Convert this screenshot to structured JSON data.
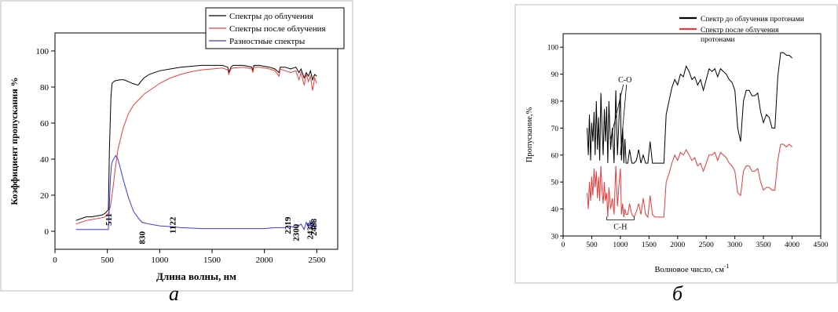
{
  "captions": {
    "a": "а",
    "b": "б"
  },
  "chart_data": [
    {
      "id": "a",
      "type": "line",
      "xlabel": "Длина волны, нм",
      "ylabel": "Коэффициент пропускания %",
      "xlim": [
        0,
        2700
      ],
      "ylim": [
        -10,
        110
      ],
      "xticks": [
        0,
        500,
        1000,
        1500,
        2000,
        2500
      ],
      "yticks": [
        0,
        20,
        40,
        60,
        80,
        100
      ],
      "legend_position": "top-right",
      "series": [
        {
          "name": "Спектры до облучения",
          "color": "#000000",
          "x": [
            200,
            250,
            300,
            350,
            400,
            450,
            480,
            510,
            520,
            535,
            545,
            560,
            580,
            620,
            660,
            700,
            740,
            770,
            790,
            800,
            820,
            850,
            900,
            1000,
            1100,
            1200,
            1300,
            1400,
            1500,
            1600,
            1650,
            1660,
            1680,
            1700,
            1800,
            1880,
            1890,
            1900,
            1950,
            2000,
            2050,
            2100,
            2140,
            2150,
            2200,
            2250,
            2300,
            2330,
            2350,
            2380,
            2400,
            2420,
            2440,
            2460,
            2480,
            2500
          ],
          "y": [
            6,
            7,
            8,
            8,
            8.5,
            9,
            10,
            12,
            45,
            75,
            82,
            83,
            83.5,
            84,
            84,
            83,
            82,
            81.5,
            81,
            81.5,
            83,
            85,
            87,
            89,
            90,
            91,
            91.5,
            92,
            92,
            92,
            91,
            88,
            91,
            92,
            92,
            91,
            89,
            92,
            92,
            91.5,
            91,
            90,
            88,
            91,
            91,
            90,
            91,
            88,
            90,
            85,
            88,
            86,
            89,
            84,
            87,
            86
          ]
        },
        {
          "name": "Спектры после облучения",
          "color": "#f03c3c",
          "x": [
            200,
            250,
            300,
            350,
            400,
            450,
            480,
            510,
            530,
            550,
            570,
            600,
            650,
            700,
            750,
            800,
            850,
            900,
            950,
            1000,
            1100,
            1200,
            1300,
            1400,
            1500,
            1600,
            1650,
            1660,
            1680,
            1700,
            1800,
            1880,
            1890,
            1900,
            1950,
            2000,
            2050,
            2100,
            2140,
            2150,
            2200,
            2250,
            2300,
            2330,
            2350,
            2380,
            2400,
            2420,
            2440,
            2460,
            2480,
            2500
          ],
          "y": [
            4,
            5,
            6,
            6.5,
            7,
            7.5,
            8,
            10,
            14,
            22,
            32,
            45,
            57,
            65,
            70,
            73,
            76,
            78,
            80,
            82,
            85,
            87,
            88.5,
            89.5,
            90,
            90.5,
            89.5,
            87,
            90,
            90.5,
            91,
            90,
            88,
            91,
            91,
            90.5,
            90,
            89,
            86,
            90,
            89,
            88,
            89,
            84,
            88,
            81,
            87,
            83,
            86,
            78,
            85,
            82
          ]
        },
        {
          "name": "Разностные спектры",
          "color": "#3a3ae8",
          "x": [
            200,
            300,
            400,
            490,
            500,
            510,
            520,
            530,
            540,
            550,
            560,
            570,
            580,
            590,
            600,
            620,
            650,
            700,
            750,
            800,
            830,
            900,
            1000,
            1122,
            1200,
            1400,
            1600,
            1800,
            2000,
            2100,
            2200,
            2219,
            2300,
            2350,
            2380,
            2400,
            2420,
            2435,
            2450,
            2468,
            2480,
            2500
          ],
          "y": [
            1,
            1,
            1,
            1,
            1,
            1,
            15,
            30,
            37,
            39,
            40,
            41,
            42,
            41,
            40,
            36,
            29,
            19,
            11,
            7,
            5,
            4,
            3,
            2.5,
            2,
            1.5,
            1.5,
            1.5,
            1.5,
            2,
            2,
            3,
            2,
            4,
            1,
            5,
            2,
            6,
            1,
            5,
            2,
            3
          ]
        }
      ],
      "annotations": [
        "511",
        "830",
        "1122",
        "2219",
        "2300",
        "2435",
        "2468"
      ],
      "annotation_points": [
        [
          511,
          10
        ],
        [
          830,
          0
        ],
        [
          1122,
          8
        ],
        [
          2219,
          8
        ],
        [
          2300,
          4
        ],
        [
          2435,
          5
        ],
        [
          2468,
          7
        ]
      ]
    },
    {
      "id": "b",
      "type": "line",
      "xlabel": "Волновое число, см",
      "xlabel_sup": "-1",
      "ylabel": "Пропускание,%",
      "xlim": [
        0,
        4500
      ],
      "ylim": [
        30,
        105
      ],
      "xticks": [
        0,
        500,
        1000,
        1500,
        2000,
        2500,
        3000,
        3500,
        4000,
        4500
      ],
      "yticks": [
        30,
        40,
        50,
        60,
        70,
        80,
        90,
        100
      ],
      "legend_position": "top-right",
      "series": [
        {
          "name": "Спектр до облучения протонами",
          "color": "#000000",
          "x": [
            420,
            440,
            460,
            480,
            500,
            520,
            540,
            560,
            580,
            600,
            620,
            640,
            660,
            680,
            700,
            720,
            740,
            760,
            780,
            800,
            830,
            860,
            890,
            920,
            950,
            980,
            1000,
            1020,
            1040,
            1060,
            1080,
            1100,
            1130,
            1160,
            1200,
            1240,
            1280,
            1320,
            1360,
            1400,
            1440,
            1480,
            1520,
            1560,
            1600,
            1640,
            1680,
            1720,
            1760,
            1800,
            1850,
            1900,
            1950,
            2000,
            2050,
            2100,
            2150,
            2200,
            2250,
            2300,
            2350,
            2400,
            2450,
            2500,
            2550,
            2600,
            2650,
            2700,
            2750,
            2800,
            2850,
            2900,
            2950,
            3000,
            3050,
            3100,
            3150,
            3200,
            3250,
            3300,
            3350,
            3400,
            3450,
            3500,
            3550,
            3600,
            3650,
            3700,
            3750,
            3800,
            3850,
            3900,
            3950,
            4000
          ],
          "y": [
            70,
            60,
            75,
            58,
            72,
            65,
            76,
            60,
            80,
            62,
            74,
            58,
            83,
            70,
            60,
            77,
            65,
            78,
            57,
            80,
            62,
            70,
            57,
            84,
            60,
            75,
            83,
            58,
            70,
            57,
            66,
            57,
            57,
            62,
            57,
            57,
            58,
            62,
            57,
            60,
            57,
            57,
            65,
            57,
            57,
            57,
            57,
            57,
            57,
            75,
            80,
            85,
            88,
            86,
            90,
            89,
            93,
            91,
            88,
            89,
            86,
            88,
            84,
            88,
            92,
            91,
            92,
            89,
            92,
            91,
            90,
            88,
            87,
            84,
            70,
            65,
            80,
            84,
            84,
            82,
            82,
            83,
            76,
            72,
            75,
            74,
            70,
            70,
            89,
            98,
            98,
            97,
            97,
            96
          ]
        },
        {
          "name": "Спектр после облучения протонами",
          "color": "#e83a3a",
          "x": [
            420,
            440,
            460,
            480,
            500,
            520,
            540,
            560,
            580,
            600,
            620,
            640,
            660,
            680,
            700,
            720,
            740,
            760,
            780,
            800,
            830,
            860,
            890,
            920,
            950,
            980,
            1000,
            1020,
            1040,
            1060,
            1080,
            1100,
            1130,
            1160,
            1200,
            1240,
            1280,
            1320,
            1360,
            1400,
            1440,
            1480,
            1520,
            1560,
            1600,
            1640,
            1680,
            1720,
            1760,
            1800,
            1850,
            1900,
            1950,
            2000,
            2050,
            2100,
            2150,
            2200,
            2250,
            2300,
            2350,
            2400,
            2450,
            2500,
            2550,
            2600,
            2650,
            2700,
            2750,
            2800,
            2850,
            2900,
            2950,
            3000,
            3050,
            3100,
            3150,
            3200,
            3250,
            3300,
            3350,
            3400,
            3450,
            3500,
            3550,
            3600,
            3650,
            3700,
            3750,
            3800,
            3850,
            3900,
            3950,
            4000
          ],
          "y": [
            46,
            40,
            50,
            43,
            52,
            45,
            55,
            48,
            54,
            44,
            52,
            43,
            56,
            47,
            42,
            50,
            43,
            46,
            37,
            48,
            40,
            44,
            38,
            56,
            41,
            50,
            55,
            38,
            42,
            37,
            40,
            38,
            38,
            42,
            38,
            37,
            39,
            42,
            38,
            44,
            38,
            37,
            45,
            38,
            37,
            37,
            37,
            37,
            37,
            50,
            53,
            57,
            60,
            58,
            61,
            60,
            62,
            60,
            58,
            59,
            56,
            57,
            54,
            57,
            60,
            60,
            61,
            58,
            61,
            60,
            59,
            57,
            56,
            54,
            46,
            45,
            54,
            56,
            56,
            54,
            54,
            55,
            50,
            47,
            48,
            48,
            47,
            47,
            58,
            64,
            64,
            63,
            64,
            63
          ]
        }
      ],
      "annotations": [
        "C-O",
        "C-H"
      ]
    }
  ]
}
